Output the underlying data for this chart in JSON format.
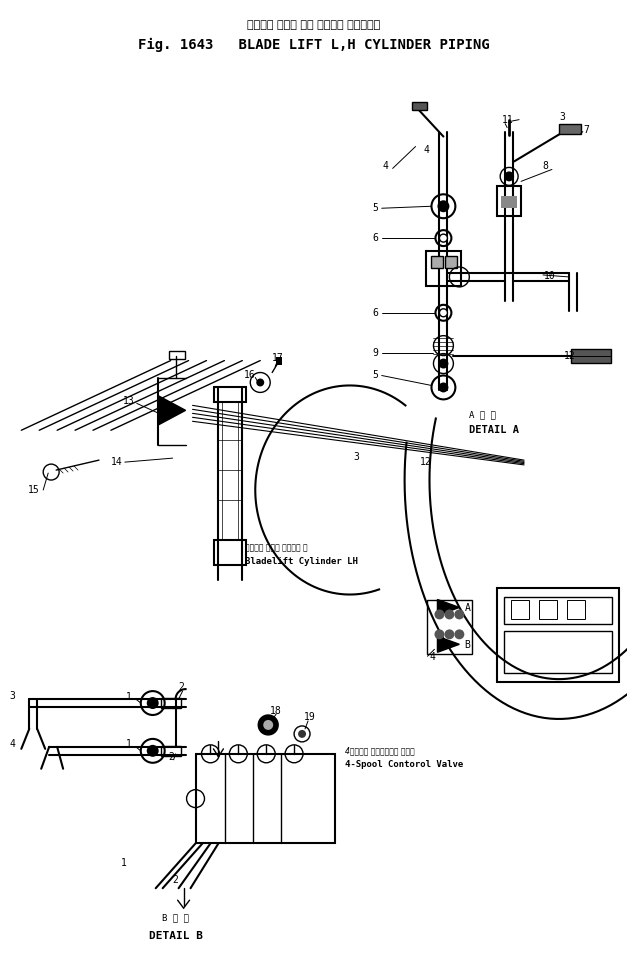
{
  "title_japanese": "ブレード リフト 左側 シリンダ パイピング",
  "title_english": "Fig. 1643   BLADE LIFT L,H CYLINDER PIPING",
  "bg_color": "#ffffff",
  "fig_width": 6.28,
  "fig_height": 9.75,
  "detail_a_japanese": "A 詳 細",
  "detail_a_english": "DETAIL A",
  "detail_b_japanese": "B 詳 細",
  "detail_b_english": "DETAIL B",
  "label_bladelift_jp": "ブレート リフト シリンタ 左",
  "label_bladelift_en": "Bladelift Cylinder LH",
  "label_4spool_jp": "4スプール コントロール バルブ",
  "label_4spool_en": "4-Spool Contorol Valve"
}
